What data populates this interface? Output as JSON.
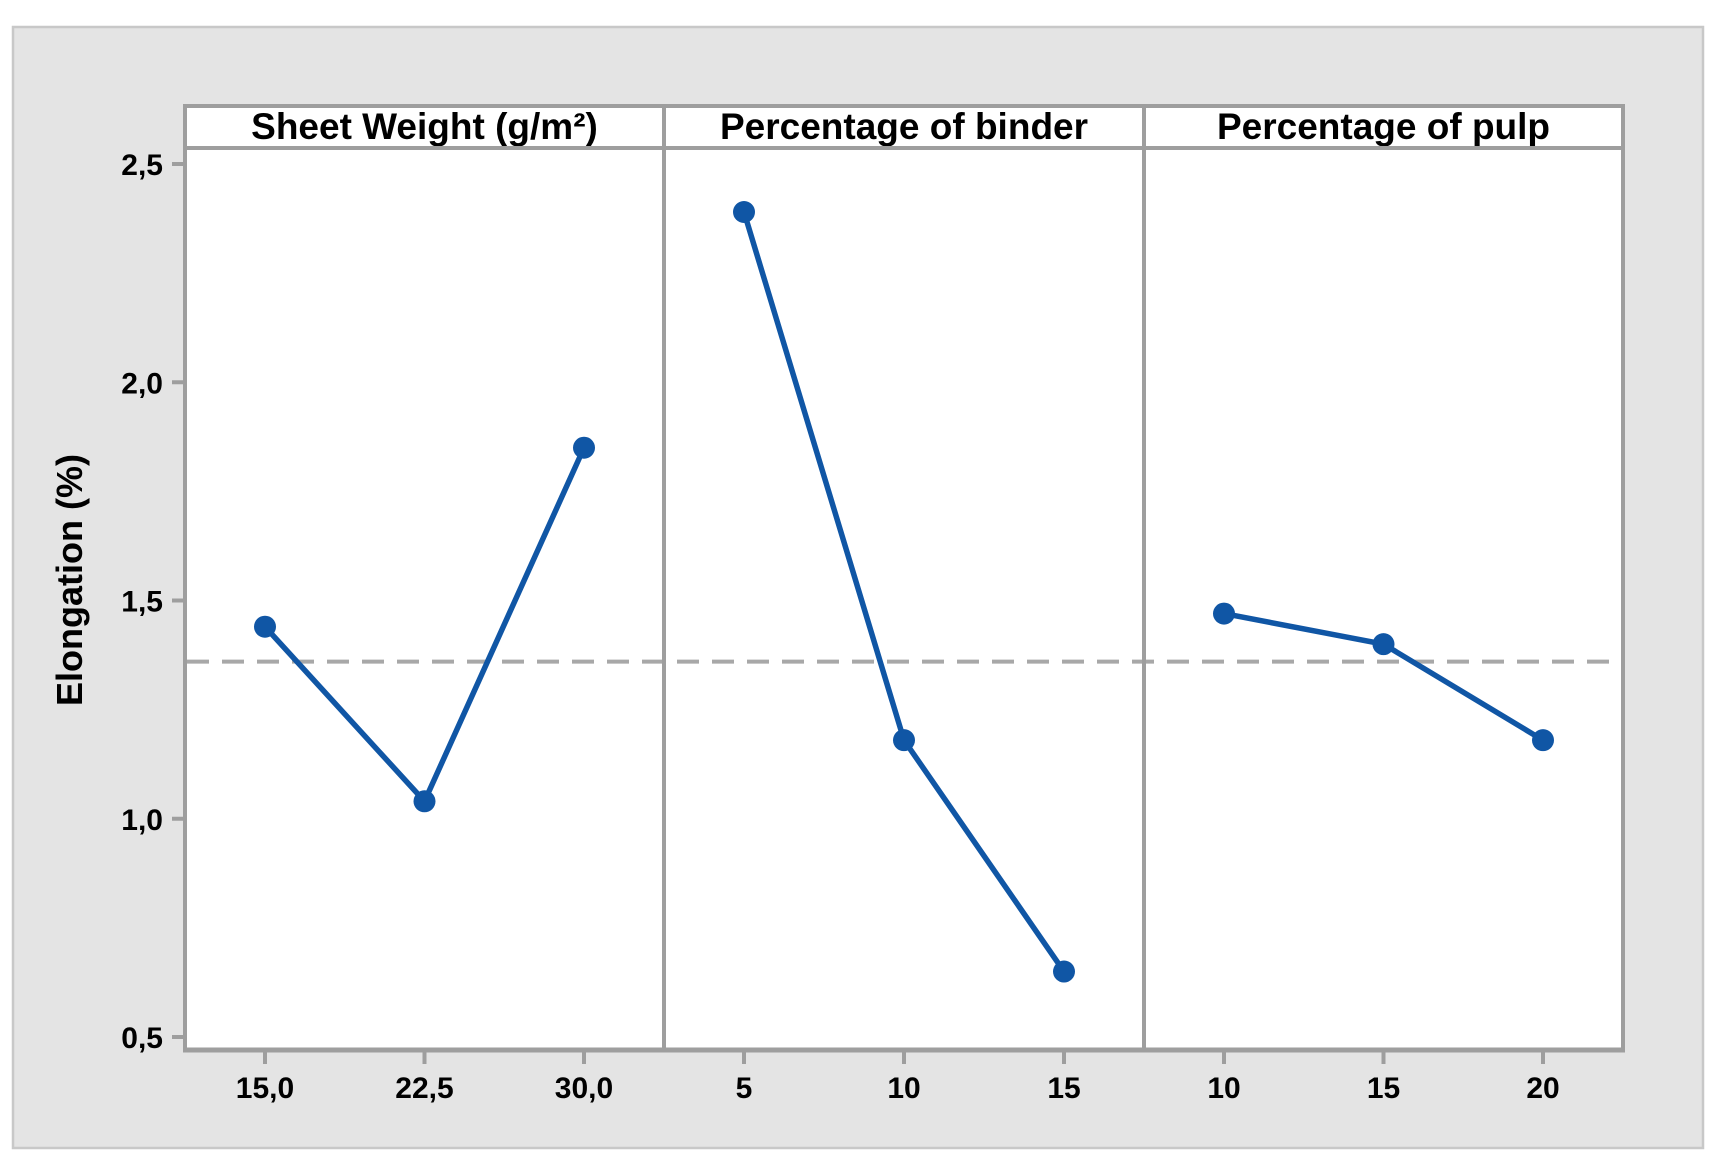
{
  "figure": {
    "background_color": "#e4e4e4",
    "border_color": "#c8c8c8",
    "plot_background": "#ffffff",
    "frame_color": "#9e9e9e",
    "text_color": "#000000"
  },
  "chart_data": {
    "type": "line",
    "subtype": "main-effects-plot",
    "title": "",
    "ylabel": "Elongation (%)",
    "xlabel": "",
    "grid": false,
    "legend": null,
    "ylim": [
      0.47,
      2.53
    ],
    "y_ticks": [
      "0,5",
      "1,0",
      "1,5",
      "2,0",
      "2,5"
    ],
    "y_tick_values": [
      0.5,
      1.0,
      1.5,
      2.0,
      2.5
    ],
    "mean_line": {
      "value": 1.36,
      "style": "dashed",
      "color": "#a8a8a8"
    },
    "series_color": "#1056a5",
    "panels": [
      {
        "title": "Sheet Weight (g/m²)",
        "x_labels": [
          "15,0",
          "22,5",
          "30,0"
        ],
        "x_values": [
          15.0,
          22.5,
          30.0
        ],
        "y_values": [
          1.44,
          1.04,
          1.85
        ]
      },
      {
        "title": "Percentage of binder",
        "x_labels": [
          "5",
          "10",
          "15"
        ],
        "x_values": [
          5,
          10,
          15
        ],
        "y_values": [
          2.39,
          1.18,
          0.65
        ]
      },
      {
        "title": "Percentage of pulp",
        "x_labels": [
          "10",
          "15",
          "20"
        ],
        "x_values": [
          10,
          15,
          20
        ],
        "y_values": [
          1.47,
          1.4,
          1.18
        ]
      }
    ]
  }
}
